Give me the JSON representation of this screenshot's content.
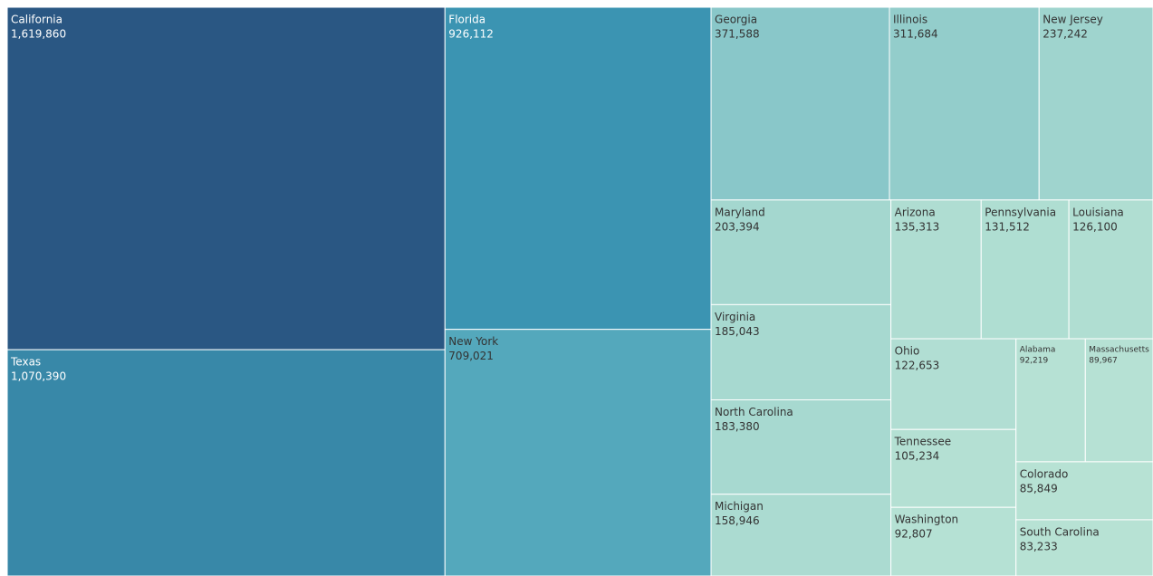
{
  "chart_data": {
    "type": "treemap",
    "categories": [
      "California",
      "Texas",
      "Florida",
      "New York",
      "Georgia",
      "Illinois",
      "New Jersey",
      "Maryland",
      "Virginia",
      "North Carolina",
      "Michigan",
      "Arizona",
      "Pennsylvania",
      "Louisiana",
      "Ohio",
      "Tennessee",
      "Washington",
      "Alabama",
      "Massachusetts",
      "Colorado",
      "South Carolina"
    ],
    "values": [
      1619860,
      1070390,
      926112,
      709021,
      371588,
      311684,
      237242,
      203394,
      185043,
      183380,
      158946,
      135313,
      131512,
      126100,
      122653,
      105234,
      92807,
      92219,
      89967,
      85849,
      83233
    ],
    "value_labels": [
      "1,619,860",
      "1,070,390",
      "926,112",
      "709,021",
      "371,588",
      "311,684",
      "237,242",
      "203,394",
      "185,043",
      "183,380",
      "158,946",
      "135,313",
      "131,512",
      "126,100",
      "122,653",
      "105,234",
      "92,807",
      "92,219",
      "89,967",
      "85,849",
      "83,233"
    ],
    "color_range": [
      "#b7e2d4",
      "#3d9bb7",
      "#2a5783"
    ]
  }
}
